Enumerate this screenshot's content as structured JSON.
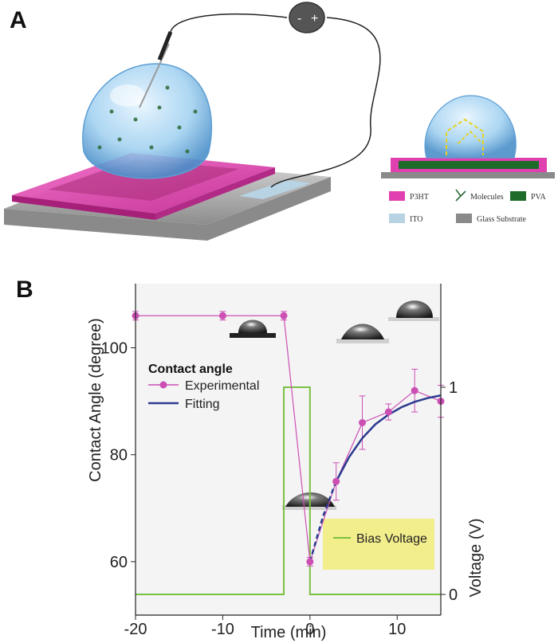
{
  "panel_a": {
    "letter": "A",
    "battery": {
      "minus": "-",
      "plus": "+"
    },
    "legend": [
      {
        "label": "P3HT",
        "color": "#e040b0"
      },
      {
        "label": "Molecules",
        "color": "#2e6b3a"
      },
      {
        "label": "PVA",
        "color": "#1f6b2a"
      },
      {
        "label": "ITO",
        "color": "#b7d3e4"
      },
      {
        "label": "Glass Substrate",
        "color": "#8a8a8a"
      }
    ]
  },
  "panel_b": {
    "letter": "B"
  },
  "chart_data": {
    "type": "line",
    "xlabel": "Time (min)",
    "ylabel": "Contact Angle (degree)",
    "y2label": "Voltage (V)",
    "xlim": [
      -20,
      15
    ],
    "ylim": [
      50,
      112
    ],
    "y2lim": [
      -0.1,
      1.5
    ],
    "xticks": [
      -20,
      -10,
      0,
      10
    ],
    "yticks": [
      60,
      80,
      100
    ],
    "y2ticks": [
      0,
      1
    ],
    "legend_title": "Contact angle",
    "series": [
      {
        "name": "Experimental",
        "color": "#cc4fb4",
        "x": [
          -20,
          -10,
          -3,
          0,
          3,
          6,
          9,
          12,
          15
        ],
        "y": [
          106,
          106,
          106,
          60,
          75,
          86,
          88,
          92,
          90
        ],
        "err": [
          0.8,
          0.8,
          0.8,
          0.8,
          3.5,
          5,
          1.5,
          4,
          3
        ]
      },
      {
        "name": "Fitting",
        "color": "#2b3a8f",
        "x": [
          0,
          1.5,
          3,
          4.5,
          6,
          7.5,
          9,
          10.5,
          12,
          13.5,
          15
        ],
        "y": [
          60,
          68.5,
          75,
          79.6,
          83.1,
          85.7,
          87.5,
          88.9,
          89.9,
          90.6,
          91.1
        ]
      },
      {
        "name": "Bias Voltage",
        "color": "#7ac142",
        "axis": "y2",
        "x": [
          -20,
          -3,
          -3,
          0,
          0,
          15
        ],
        "y": [
          0,
          0,
          1,
          1,
          0,
          0
        ]
      }
    ]
  }
}
